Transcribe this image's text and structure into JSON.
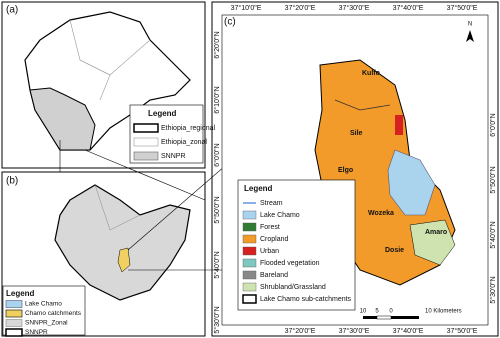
{
  "panel_a": {
    "label": "(a)",
    "legend": {
      "title": "Legend",
      "items": [
        "Ethiopia_regional",
        "Ethiopia_zonal",
        "SNNPR"
      ]
    }
  },
  "panel_b": {
    "label": "(b)",
    "legend": {
      "title": "Legend",
      "items": [
        "Lake Chamo",
        "Chamo catchments",
        "SNNPR_Zonal",
        "SNNPR"
      ]
    }
  },
  "panel_c": {
    "label": "(c)",
    "north": "N",
    "top_ticks": [
      "37°10'0\"E",
      "37°20'0\"E",
      "37°30'0\"E",
      "37°40'0\"E",
      "37°50'0\"E"
    ],
    "left_ticks": [
      "6°20'0\"N",
      "6°10'0\"N",
      "6°0'0\"N",
      "5°50'0\"N",
      "5°40'0\"N",
      "5°30'0\"N"
    ],
    "right_ticks": [
      "6°0'0\"N",
      "5°50'0\"N",
      "5°40'0\"N",
      "5°30'0\"N"
    ],
    "bottom_ticks": [
      "37°20'0\"E",
      "37°30'0\"E",
      "37°40'0\"E",
      "37°50'0\"E"
    ],
    "places": [
      "Kulfo",
      "Sile",
      "Elgo",
      "Wozeka",
      "Amaro",
      "Dosie"
    ],
    "legend": {
      "title": "Legend",
      "items": [
        "Stream",
        "Lake Chamo",
        "Forest",
        "Cropland",
        "Urban",
        "Flooded vegetation",
        "Bareland",
        "Shrubland/Grassland",
        "Lake Chamo sub-catchments"
      ]
    },
    "scale": [
      "10",
      "5",
      "0",
      "10 Kilometers"
    ]
  }
}
